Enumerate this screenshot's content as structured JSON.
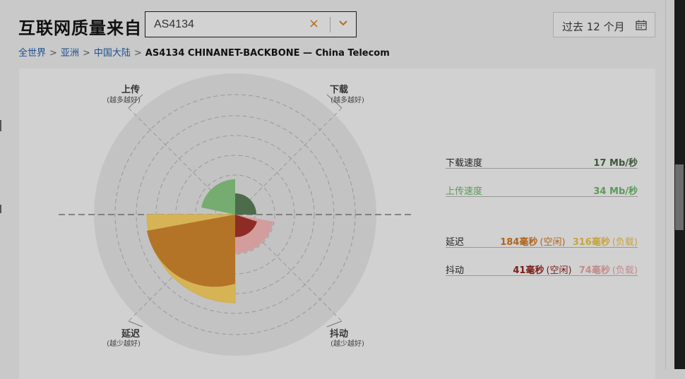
{
  "header": {
    "title": "互联网质量来自",
    "search": {
      "value": "AS4134",
      "clear_icon": "close-icon",
      "toggle_icon": "chevron-down-icon"
    },
    "date_range": {
      "label": "过去 12 个月",
      "icon": "calendar-icon"
    }
  },
  "breadcrumb": {
    "items": [
      "全世界",
      "亚洲",
      "中国大陆"
    ],
    "separator": ">",
    "current": "AS4134 CHINANET-BACKBONE — China Telecom"
  },
  "radar": {
    "axes": {
      "upload": {
        "title": "上传",
        "sub": "(越多越好)"
      },
      "download": {
        "title": "下载",
        "sub": "(越多越好)"
      },
      "latency": {
        "title": "延迟",
        "sub": "(越少越好)"
      },
      "jitter": {
        "title": "抖动",
        "sub": "(越少越好)"
      }
    }
  },
  "stats": {
    "download": {
      "label": "下载速度",
      "value": "17 Mb/秒",
      "color": "#3a5a35"
    },
    "upload": {
      "label": "上传速度",
      "value": "34 Mb/秒",
      "color": "#5b9a5a"
    },
    "latency": {
      "label": "延迟",
      "idle_value": "184毫秒",
      "idle_label": "(空闲)",
      "idle_color": "#b0651e",
      "loaded_value": "316毫秒",
      "loaded_label": "(负载)",
      "loaded_color": "#c9a33e"
    },
    "jitter": {
      "label": "抖动",
      "idle_value": "41毫秒",
      "idle_label": "(空闲)",
      "idle_color": "#7a1d16",
      "loaded_value": "74毫秒",
      "loaded_label": "(负载)",
      "loaded_color": "#c48c8c"
    }
  },
  "colors": {
    "download": "#4e6e4b",
    "upload": "#77ad72",
    "latency_idle": "#b5762a",
    "latency_loaded": "#d8b555",
    "jitter_idle": "#8f2c26",
    "jitter_loaded": "#d49d9d"
  }
}
